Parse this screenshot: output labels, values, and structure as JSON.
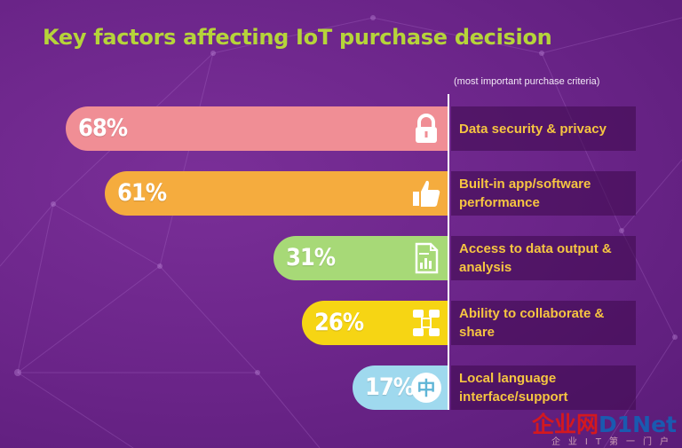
{
  "chart_data": {
    "type": "bar",
    "orientation": "horizontal",
    "title": "Key factors affecting IoT purchase decision",
    "subtitle": "(most important purchase criteria)",
    "unit": "%",
    "xlim": [
      0,
      100
    ],
    "categories": [
      "Data security & privacy",
      "Built-in app/software performance",
      "Access to data output & analysis",
      "Ability to collaborate & share",
      "Local language interface/support"
    ],
    "values": [
      68,
      61,
      31,
      26,
      17
    ],
    "data_labels": [
      "68%",
      "61%",
      "31%",
      "26%",
      "17%"
    ],
    "label_lines": [
      [
        "Data security & privacy"
      ],
      [
        "Built-in app/software",
        "performance"
      ],
      [
        "Access to data output &",
        "analysis"
      ],
      [
        "Ability to collaborate &",
        "share"
      ],
      [
        "Local language",
        "interface/support"
      ]
    ],
    "icons": [
      "lock-icon",
      "thumbs-up-icon",
      "document-chart-icon",
      "hands-collaborate-icon",
      "chinese-character-icon"
    ],
    "icon_glyph_last": "中",
    "colors": [
      "#f08e95",
      "#f5ac3e",
      "#a7d977",
      "#f6d514",
      "#9fd9ee"
    ],
    "grid": false,
    "legend": "none"
  },
  "watermark": {
    "part1": "企业网",
    "part2": "D1Net",
    "sub": "企业IT第一门户"
  }
}
